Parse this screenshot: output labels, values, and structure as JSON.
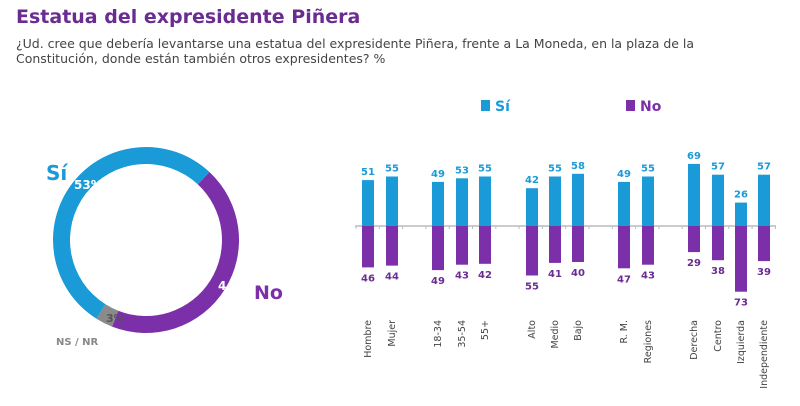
{
  "title": "Estatua del expresidente Piñera",
  "subtitle": "¿Ud. cree que debería levantarse una estatua del expresidente Piñera, frente a La Moneda, en la plaza de la Constitución, donde están también otros expresidentes? %",
  "colors": {
    "si": "#1a9bd7",
    "no": "#7b2fa8",
    "nsnr": "#8a8a8a",
    "title": "#6a2c91"
  },
  "chart_data": [
    {
      "type": "pie",
      "variant": "donut",
      "slices": [
        {
          "name": "Sí",
          "value": 53,
          "label": "53%"
        },
        {
          "name": "No",
          "value": 44,
          "label": "44%"
        },
        {
          "name": "NS / NR",
          "value": 3,
          "label": "3%"
        }
      ]
    },
    {
      "type": "bar",
      "variant": "diverging",
      "legend": {
        "position": "top",
        "entries": [
          "Sí",
          "No"
        ]
      },
      "categories": [
        "Hombre",
        "Mujer",
        "18-34",
        "35-54",
        "55+",
        "Alto",
        "Medio",
        "Bajo",
        "R. M.",
        "Regiones",
        "Derecha",
        "Centro",
        "Izquierda",
        "Independiente"
      ],
      "groups": [
        [
          0,
          1
        ],
        [
          2,
          3,
          4
        ],
        [
          5,
          6,
          7
        ],
        [
          8,
          9
        ],
        [
          10,
          11,
          12,
          13
        ]
      ],
      "series": [
        {
          "name": "Sí",
          "values": [
            51,
            55,
            49,
            53,
            55,
            42,
            55,
            58,
            49,
            55,
            69,
            57,
            26,
            57
          ]
        },
        {
          "name": "No",
          "values": [
            46,
            44,
            49,
            43,
            42,
            55,
            41,
            40,
            47,
            43,
            29,
            38,
            73,
            39
          ]
        }
      ]
    }
  ]
}
